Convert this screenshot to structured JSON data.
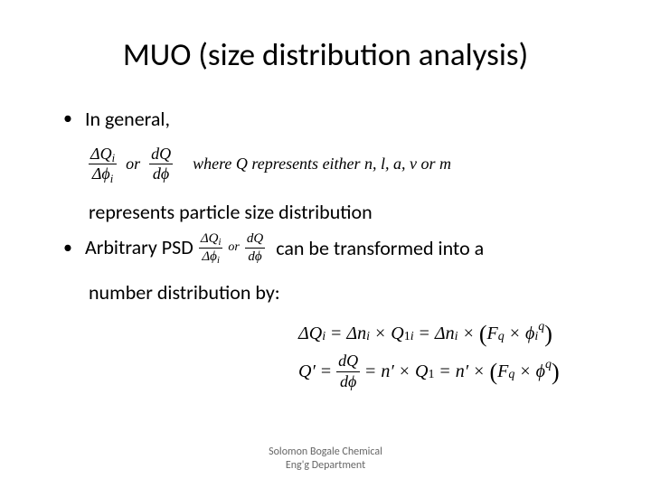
{
  "title": "MUO (size distribution analysis)",
  "bullet1": "In general,",
  "eq1": {
    "frac1_num": "ΔQᵢ",
    "frac1_den": "Δϕᵢ",
    "or": "or",
    "frac2_num": "dQ",
    "frac2_den": "dϕ",
    "where": "where Q represents either n, l, a, v or m"
  },
  "line_represents": "represents particle size distribution",
  "bullet2_a": "Arbitrary PSD",
  "bullet2_b": "can be transformed into a",
  "inline": {
    "frac1_num": "ΔQᵢ",
    "frac1_den": "Δϕᵢ",
    "or": "or",
    "frac2_num": "dQ",
    "frac2_den": "dϕ"
  },
  "line_number_dist": "number distribution by:",
  "eqblock": {
    "line1": "ΔQᵢ = Δnᵢ × Q₁ᵢ = Δnᵢ × (F_q × ϕᵢ^q)",
    "line2": "Q′ = dQ/dϕ = n′ × Q₁ = n′ × (F_q × ϕ^q)"
  },
  "footer_l1": "Solomon Bogale                     Chemical",
  "footer_l2": "Eng'g Department",
  "colors": {
    "bg": "#ffffff",
    "text": "#000000",
    "footer": "#666666"
  }
}
